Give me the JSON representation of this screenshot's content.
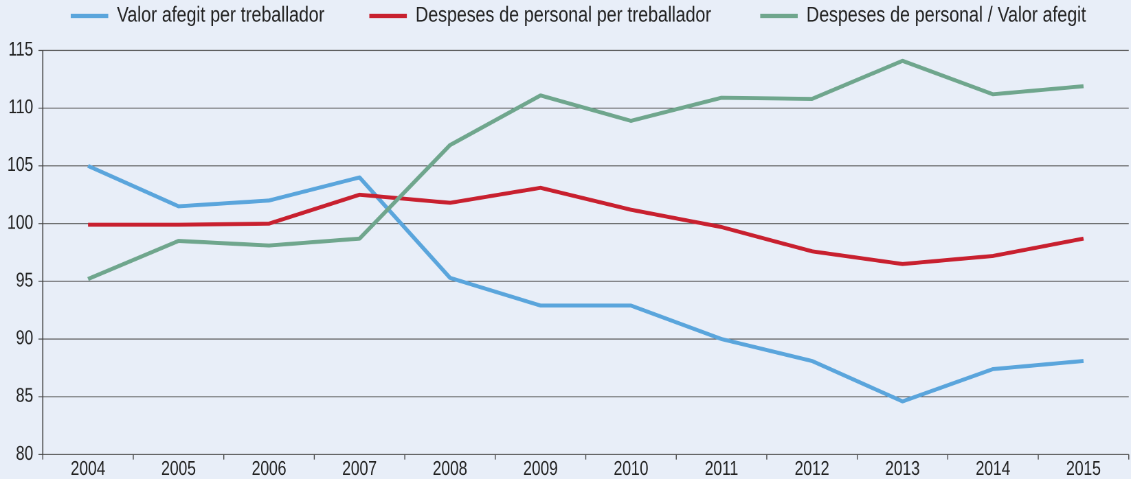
{
  "chart_data": {
    "type": "line",
    "categories": [
      "2004",
      "2005",
      "2006",
      "2007",
      "2008",
      "2009",
      "2010",
      "2011",
      "2012",
      "2013",
      "2014",
      "2015"
    ],
    "series": [
      {
        "name": "Valor afegit per treballador",
        "color": "#5aa5dc",
        "values": [
          105.0,
          101.5,
          102.0,
          104.0,
          95.3,
          92.9,
          92.9,
          90.0,
          88.1,
          84.6,
          87.4,
          88.1
        ]
      },
      {
        "name": "Despeses de personal per treballador",
        "color": "#c8202f",
        "values": [
          99.9,
          99.9,
          100.0,
          102.5,
          101.8,
          103.1,
          101.2,
          99.7,
          97.6,
          96.5,
          97.2,
          98.7
        ]
      },
      {
        "name": "Despeses de personal / Valor afegit",
        "color": "#6fa68d",
        "values": [
          95.2,
          98.5,
          98.1,
          98.7,
          106.8,
          111.1,
          108.9,
          110.9,
          110.8,
          114.1,
          111.2,
          111.9
        ]
      }
    ],
    "ylim": [
      80,
      115
    ],
    "yticks": [
      80,
      85,
      90,
      95,
      100,
      105,
      110,
      115
    ],
    "grid": true,
    "legend": "top"
  }
}
